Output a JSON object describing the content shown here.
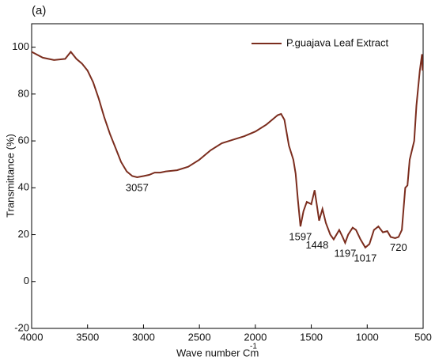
{
  "chart_data": {
    "type": "line",
    "title": "(a)",
    "xlabel": "Wave number Cm",
    "xlabel_superscript": "-1",
    "ylabel": "Transmittance (%)",
    "x": [
      4000,
      3900,
      3800,
      3700,
      3650,
      3600,
      3550,
      3500,
      3450,
      3400,
      3350,
      3300,
      3250,
      3200,
      3150,
      3100,
      3057,
      3000,
      2950,
      2900,
      2850,
      2800,
      2700,
      2600,
      2500,
      2400,
      2300,
      2200,
      2100,
      2000,
      1900,
      1800,
      1770,
      1740,
      1700,
      1660,
      1640,
      1620,
      1597,
      1570,
      1540,
      1500,
      1470,
      1448,
      1430,
      1400,
      1370,
      1330,
      1300,
      1250,
      1220,
      1197,
      1170,
      1130,
      1100,
      1060,
      1017,
      980,
      940,
      900,
      860,
      820,
      790,
      750,
      720,
      690,
      660,
      640,
      620,
      580,
      560,
      530,
      510,
      505
    ],
    "series": [
      {
        "name": "P.guajava Leaf Extract",
        "color": "#7b2d1e",
        "values": [
          98,
          95.5,
          94.5,
          95,
          98,
          95,
          93,
          90,
          85,
          78,
          70,
          63,
          57,
          51,
          47,
          45,
          44.5,
          45,
          45.5,
          46.5,
          46.5,
          47,
          47.5,
          49,
          52,
          56,
          59,
          60.5,
          62,
          64,
          67,
          71,
          71.5,
          69,
          58,
          52,
          46,
          35,
          23.5,
          30,
          34,
          33,
          39,
          32,
          26,
          31,
          25,
          20,
          18,
          22,
          19,
          16.5,
          20,
          23,
          22,
          18,
          14.5,
          16,
          22,
          23.5,
          21,
          21.5,
          19,
          18.5,
          19,
          22,
          40,
          41,
          52,
          60,
          75,
          90,
          97,
          90
        ]
      }
    ],
    "annotations": [
      {
        "text": "3057",
        "x": 3057,
        "y": 44.5
      },
      {
        "text": "1597",
        "x": 1597,
        "y": 23.5
      },
      {
        "text": "1448",
        "x": 1448,
        "y": 20
      },
      {
        "text": "1197",
        "x": 1197,
        "y": 16.5
      },
      {
        "text": "1017",
        "x": 1017,
        "y": 14.5
      },
      {
        "text": "720",
        "x": 720,
        "y": 19
      }
    ],
    "xlim": [
      4000,
      500
    ],
    "xticks": [
      4000,
      3500,
      3000,
      2500,
      2000,
      1500,
      1000,
      500
    ],
    "ylim": [
      -20,
      110
    ],
    "yticks": [
      -20,
      0,
      20,
      40,
      60,
      80,
      100
    ],
    "legend": "upper right"
  }
}
